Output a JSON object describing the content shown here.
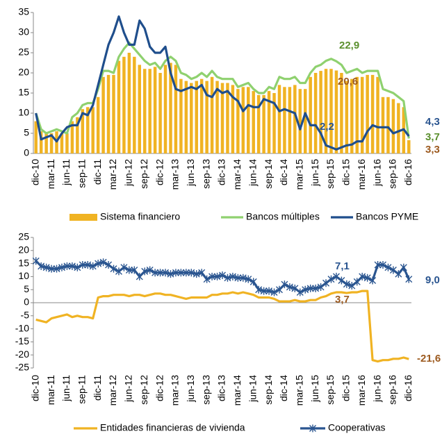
{
  "chart_data": [
    {
      "type": "combo",
      "categories": [
        "dic-10",
        null,
        null,
        "mar-11",
        null,
        null,
        "jun-11",
        null,
        null,
        "sep-11",
        null,
        null,
        "dic-11",
        null,
        null,
        "mar-12",
        null,
        null,
        "jun-12",
        null,
        null,
        "sep-12",
        null,
        null,
        "dic-12",
        null,
        null,
        "mar-13",
        null,
        null,
        "jun-13",
        null,
        null,
        "sep-13",
        null,
        null,
        "dic-13",
        null,
        null,
        "mar-14",
        null,
        null,
        "jun-14",
        null,
        null,
        "sep-14",
        null,
        null,
        "dic-14",
        null,
        null,
        "mar-15",
        null,
        null,
        "jun-15",
        null,
        null,
        "sep-15",
        null,
        null,
        "dic-15",
        null,
        null,
        "mar-16",
        null,
        null,
        "jun-16",
        null,
        null,
        "sep-16",
        null,
        null,
        "dic-16"
      ],
      "ylim": [
        0,
        35
      ],
      "yticks": [
        0,
        5,
        10,
        15,
        20,
        25,
        30,
        35
      ],
      "series": [
        {
          "name": "Sistema financiero",
          "type": "bar",
          "color": "#f0b323",
          "values": [
            8,
            5.5,
            5,
            5,
            5.5,
            5,
            5,
            8,
            9,
            11,
            11.5,
            11.5,
            14,
            19,
            19.5,
            19.5,
            23,
            24,
            25,
            24,
            22,
            21,
            21,
            21.5,
            20,
            22,
            22.5,
            22,
            18.5,
            18,
            17.5,
            18,
            18.5,
            18,
            19,
            18,
            17.5,
            17.5,
            17,
            16,
            16.5,
            16.5,
            15.5,
            14.5,
            14.5,
            15.5,
            15,
            17,
            16.5,
            16.5,
            17,
            16,
            16,
            19,
            20,
            20.5,
            21,
            21,
            20.6,
            20,
            18,
            18.5,
            19,
            19,
            19.5,
            19.5,
            19,
            14,
            14,
            13.5,
            12.5,
            11.5,
            3.3
          ]
        },
        {
          "name": "Bancos múltiples",
          "type": "line",
          "color": "#8fd16f",
          "values": [
            10,
            6,
            5,
            5.5,
            6,
            5.5,
            5,
            9,
            10,
            12,
            12.5,
            12.5,
            16,
            20.5,
            20.5,
            20,
            24,
            26,
            27.5,
            26,
            24.5,
            23,
            22,
            22.5,
            21,
            23,
            24,
            23,
            20,
            19.5,
            18.5,
            19,
            20,
            19,
            20.5,
            19,
            18.5,
            18.5,
            18.5,
            16.5,
            17,
            17.5,
            16,
            15,
            15,
            16.5,
            16,
            19,
            18.5,
            18.5,
            19,
            17.5,
            17.5,
            20,
            21.5,
            22,
            23,
            23.5,
            22.9,
            22,
            20,
            20.5,
            21,
            20,
            20.5,
            20.5,
            20.5,
            16,
            15.5,
            15,
            14,
            13,
            3.7
          ]
        },
        {
          "name": "Bancos PYME",
          "type": "line",
          "color": "#1f4e8c",
          "values": [
            10,
            3.5,
            4,
            4.5,
            3,
            5,
            6.5,
            7,
            7,
            10,
            9.5,
            12,
            17,
            22,
            27,
            30,
            34,
            30,
            27,
            27,
            33,
            31,
            26.5,
            25,
            25,
            26.5,
            20,
            16,
            15.5,
            16,
            16.5,
            16,
            17,
            14.5,
            14,
            16,
            15,
            15.5,
            14,
            13,
            10.5,
            12,
            11.5,
            11.5,
            13.5,
            13,
            12.5,
            10.5,
            11,
            10.5,
            10,
            6,
            10,
            7,
            7,
            5,
            2,
            1.5,
            1,
            1.5,
            2,
            2.2,
            3,
            3,
            5.5,
            7,
            6.5,
            6.5,
            6.5,
            5,
            5.5,
            6,
            4.3
          ]
        }
      ],
      "annotations": [
        {
          "text": "22,9",
          "color": "#5b8f2e"
        },
        {
          "text": "20,6",
          "color": "#9c5a1f"
        },
        {
          "text": "2,2",
          "color": "#2a5590"
        },
        {
          "text": "4,3",
          "color": "#2a5590"
        },
        {
          "text": "3,7",
          "color": "#5b8f2e"
        },
        {
          "text": "3,3",
          "color": "#9c5a1f"
        }
      ]
    },
    {
      "type": "line",
      "categories": [
        "dic-10",
        null,
        null,
        "mar-11",
        null,
        null,
        "jun-11",
        null,
        null,
        "sep-11",
        null,
        null,
        "dic-11",
        null,
        null,
        "mar-12",
        null,
        null,
        "jun-12",
        null,
        null,
        "sep-12",
        null,
        null,
        "dic-12",
        null,
        null,
        "mar-13",
        null,
        null,
        "jun-13",
        null,
        null,
        "sep-13",
        null,
        null,
        "dic-13",
        null,
        null,
        "mar-14",
        null,
        null,
        "jun-14",
        null,
        null,
        "sep-14",
        null,
        null,
        "dic-14",
        null,
        null,
        "mar-15",
        null,
        null,
        "jun-15",
        null,
        null,
        "sep-15",
        null,
        null,
        "dic-15",
        null,
        null,
        "mar-16",
        null,
        null,
        "jun-16",
        null,
        null,
        "sep-16",
        null,
        null,
        "dic-16"
      ],
      "ylim": [
        -25,
        25
      ],
      "yticks": [
        -25,
        -20,
        -15,
        -10,
        -5,
        0,
        5,
        10,
        15,
        20,
        25
      ],
      "series": [
        {
          "name": "Entidades financieras de vivienda",
          "type": "line",
          "color": "#f0b323",
          "values": [
            -6.5,
            -7,
            -7.5,
            -6,
            -5.5,
            -5,
            -4.5,
            -5.5,
            -5,
            -5.5,
            -5.5,
            -6,
            2,
            2.5,
            2.5,
            3,
            3,
            3,
            2.5,
            3,
            3,
            2.5,
            3,
            3.5,
            3.5,
            3,
            3,
            2.5,
            2,
            1.5,
            2,
            2,
            2,
            2,
            3,
            3,
            3.5,
            3.5,
            4,
            3.5,
            4,
            3.5,
            3,
            2,
            2,
            2,
            1.5,
            0.5,
            0.5,
            0.5,
            1,
            0.5,
            0.5,
            1,
            1,
            2,
            2.5,
            3.5,
            4,
            4,
            3.7,
            4,
            4,
            4.5,
            4.5,
            -22,
            -22.5,
            -22,
            -22,
            -21.5,
            -21.5,
            -21,
            -21.6
          ]
        },
        {
          "name": "Cooperativas",
          "type": "line",
          "color": "#2a5590",
          "marker": "asterisk",
          "values": [
            16,
            14,
            13.5,
            13,
            13,
            13.5,
            14,
            14,
            13.5,
            14.5,
            14.5,
            14,
            15,
            15.5,
            14.5,
            13,
            12,
            13.5,
            12.5,
            12.5,
            10,
            12,
            12.5,
            11.5,
            11.5,
            11.5,
            11,
            11.5,
            11.5,
            11.5,
            11.5,
            11,
            11.5,
            9,
            10,
            10,
            10.5,
            9.5,
            10,
            9.5,
            9.5,
            9,
            8,
            5,
            4.5,
            4.5,
            4,
            5,
            7,
            6,
            5.5,
            4,
            5,
            5.5,
            5.5,
            6,
            7.5,
            9,
            10,
            8.5,
            7.1,
            6.5,
            8,
            10,
            9.5,
            8.5,
            14.5,
            14.5,
            13.5,
            12.5,
            11,
            13.5,
            9.0
          ]
        }
      ],
      "annotations": [
        {
          "text": "7,1",
          "color": "#2a5590"
        },
        {
          "text": "3,7",
          "color": "#9c5a1f"
        },
        {
          "text": "9,0",
          "color": "#2a5590"
        },
        {
          "text": "-21,6",
          "color": "#9c5a1f"
        }
      ]
    }
  ]
}
